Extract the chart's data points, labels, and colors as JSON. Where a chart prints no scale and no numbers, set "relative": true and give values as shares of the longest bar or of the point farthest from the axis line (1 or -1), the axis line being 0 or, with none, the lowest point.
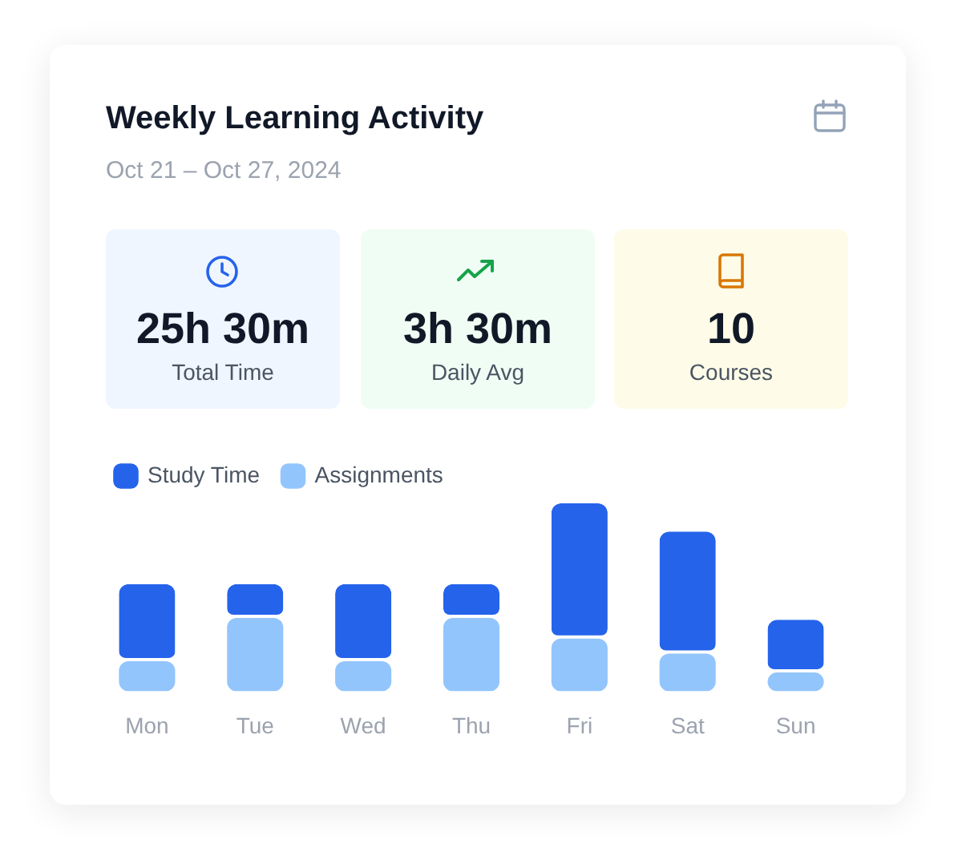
{
  "chart_data": {
    "type": "bar",
    "title": "Weekly Learning Activity",
    "subtitle": "Oct 21 – Oct 27, 2024",
    "annotations": [
      "25h 30m",
      "Total Time",
      "3h 30m",
      "Daily Avg",
      "10",
      "Courses"
    ],
    "categories": [
      "Mon",
      "Tue",
      "Wed",
      "Thu",
      "Fri",
      "Sat",
      "Sun"
    ],
    "series": [
      {
        "name": "Assignments",
        "color": "#93c5fd",
        "values": [
          0.16,
          0.39,
          0.16,
          0.39,
          0.28,
          0.2,
          0.1
        ]
      },
      {
        "name": "Study Time",
        "color": "#2563eb",
        "values": [
          0.41,
          0.18,
          0.41,
          0.18,
          0.72,
          0.65,
          0.28
        ]
      }
    ],
    "stacked": true,
    "relative": true,
    "legend": "top left"
  }
}
